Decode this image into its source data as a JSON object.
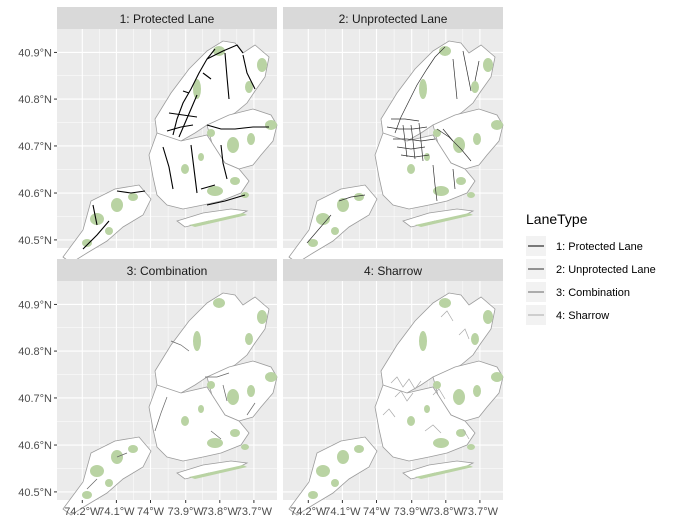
{
  "chart_data": {
    "type": "faceted-map",
    "facets": [
      {
        "label": "1: Protected Lane"
      },
      {
        "label": "2: Unprotected Lane"
      },
      {
        "label": "3: Combination"
      },
      {
        "label": "4: Sharrow"
      }
    ],
    "y_ticks": [
      "40.9°N",
      "40.8°N",
      "40.7°N",
      "40.6°N",
      "40.5°N"
    ],
    "x_ticks": [
      "74.2°W",
      "74.1°W",
      "74°W",
      "73.9°W",
      "73.8°W",
      "73.7°W"
    ],
    "xlim": [
      -74.3,
      -73.68
    ],
    "ylim": [
      40.48,
      40.925
    ],
    "legend": {
      "title": "LaneType",
      "position": "right",
      "entries": [
        {
          "label": "1: Protected Lane",
          "color": "#000000"
        },
        {
          "label": "2: Unprotected Lane",
          "color": "#333333"
        },
        {
          "label": "3: Combination",
          "color": "#666666"
        },
        {
          "label": "4: Sharrow",
          "color": "#aaaaaa"
        }
      ]
    },
    "colors": {
      "panel_bg": "#ebebeb",
      "strip_bg": "#d9d9d9",
      "grid": "#ffffff",
      "land": "#ffffff",
      "parks": "#b9d3a3",
      "land_edge": "#9c9c9c"
    }
  }
}
